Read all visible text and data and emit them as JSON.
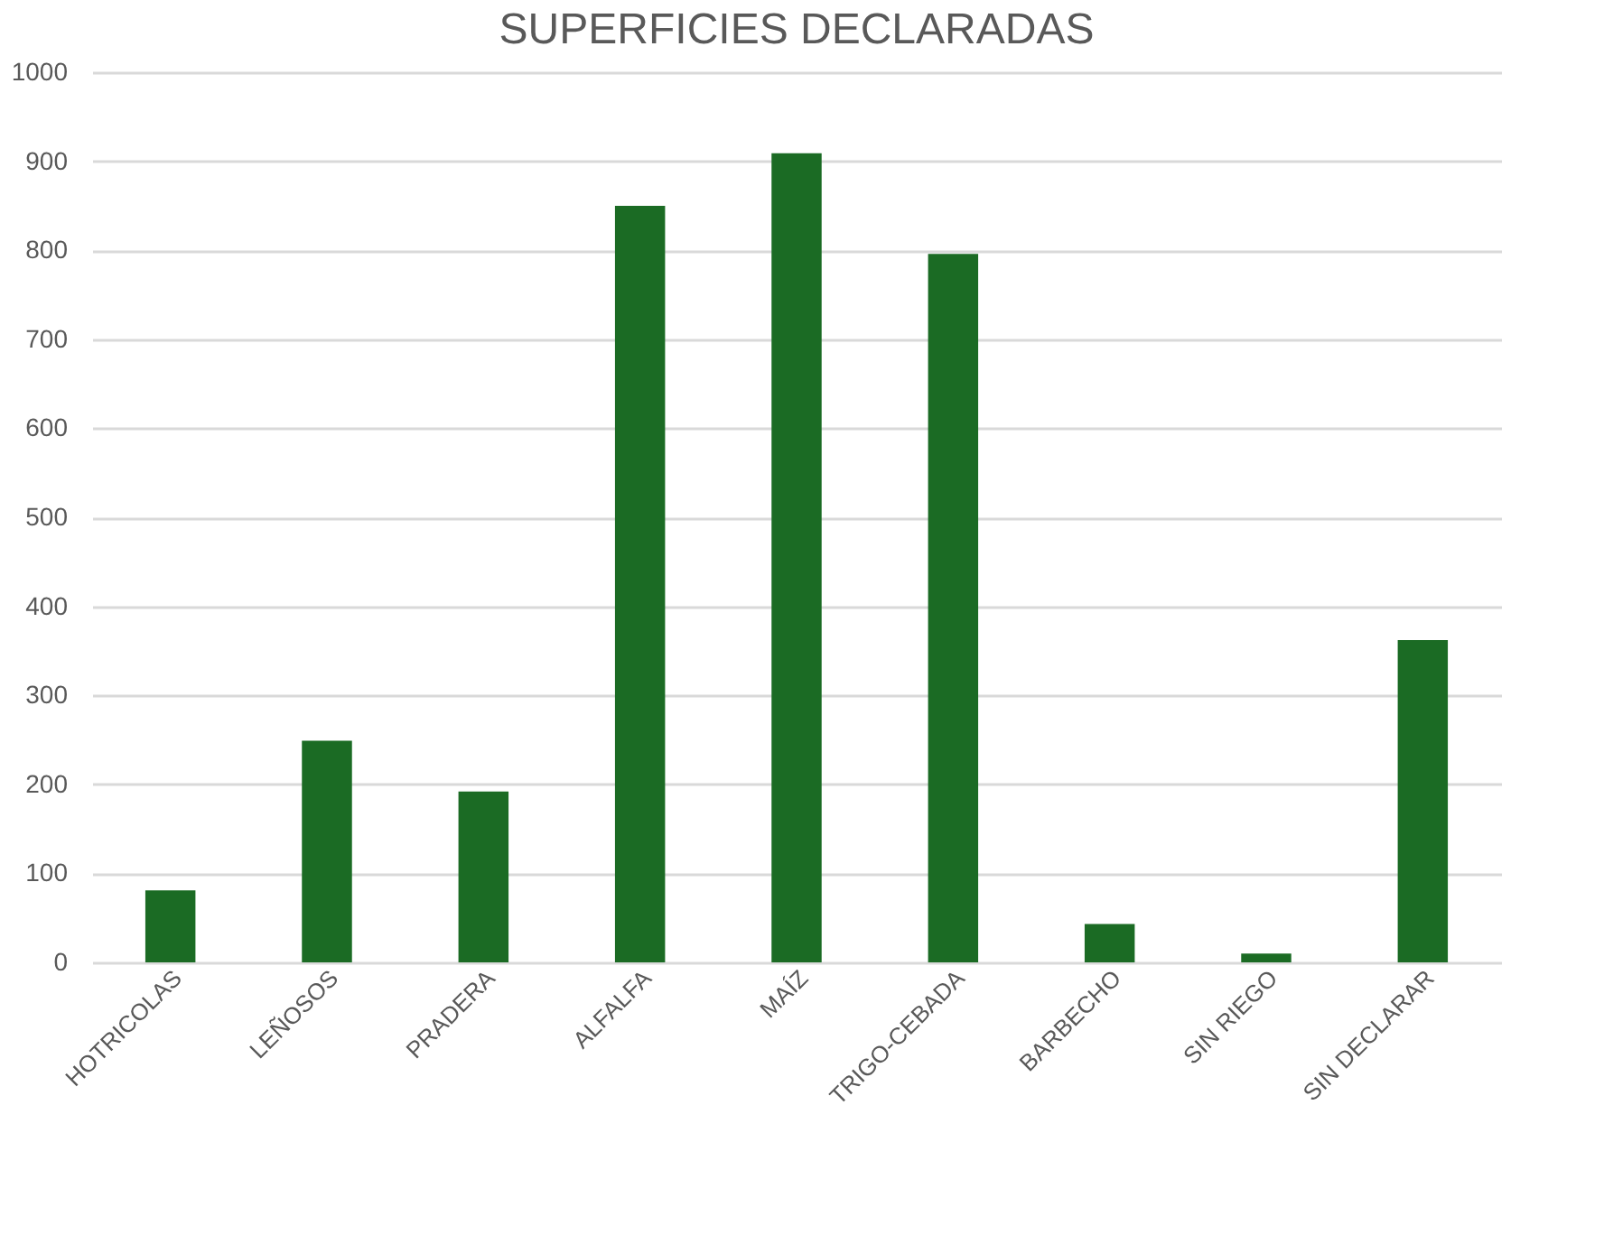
{
  "chart_data": {
    "type": "bar",
    "title": "SUPERFICIES DECLARADAS",
    "categories": [
      "HOTRICOLAS",
      "LEÑOSOS",
      "PRADERA",
      "ALFALFA",
      "MAÍZ",
      "TRIGO-CEBADA",
      "BARBECHO",
      "SIN RIEGO",
      "SIN DECLARAR"
    ],
    "values": [
      81,
      249,
      192,
      850,
      909,
      796,
      43,
      10,
      362
    ],
    "color": "#1b6b24",
    "ylim": [
      0,
      1000
    ],
    "yticks": [
      0,
      100,
      200,
      300,
      400,
      500,
      600,
      700,
      800,
      900,
      1000
    ],
    "grid": "y"
  }
}
